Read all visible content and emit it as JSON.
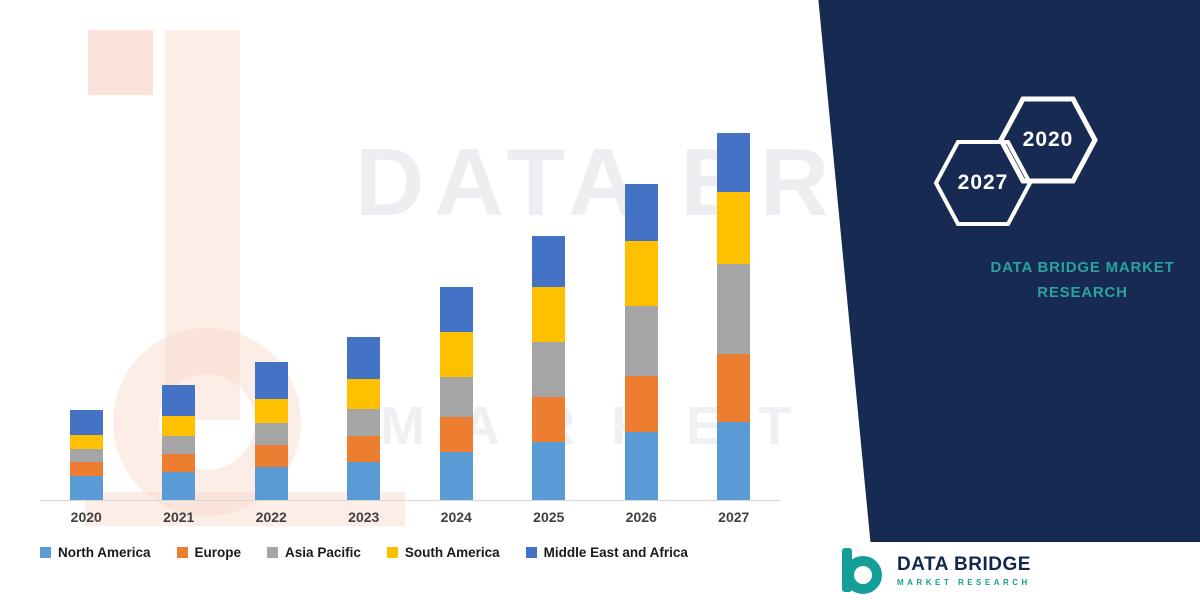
{
  "watermark": {
    "line1": "DATA BRIDGE",
    "line2": "MARKET RESEARCH"
  },
  "brand_panel": {
    "panel_color": "#172A52",
    "accent_color": "#2BA39B",
    "hexagons": [
      {
        "label": "2027"
      },
      {
        "label": "2020"
      }
    ],
    "title_line1": "DATA BRIDGE MARKET",
    "title_line2": "RESEARCH"
  },
  "footer_logo": {
    "name": "DATA BRIDGE",
    "tagline": "MARKET RESEARCH"
  },
  "chart_data": {
    "type": "bar",
    "stacked": true,
    "title": "",
    "xlabel": "",
    "ylabel": "",
    "axes_visible": false,
    "legend_position": "bottom",
    "ylim": [
      0,
      380
    ],
    "categories": [
      "2020",
      "2021",
      "2022",
      "2023",
      "2024",
      "2025",
      "2026",
      "2027"
    ],
    "series": [
      {
        "name": "North America",
        "color": "#5B9BD5",
        "values": [
          24,
          28,
          33,
          38,
          48,
          58,
          68,
          78
        ]
      },
      {
        "name": "Europe",
        "color": "#ED7D31",
        "values": [
          14,
          18,
          22,
          26,
          35,
          45,
          56,
          68
        ]
      },
      {
        "name": "Asia Pacific",
        "color": "#A5A5A5",
        "values": [
          13,
          18,
          22,
          27,
          40,
          55,
          70,
          90
        ]
      },
      {
        "name": "South America",
        "color": "#FFC000",
        "values": [
          14,
          20,
          24,
          30,
          45,
          55,
          65,
          72
        ]
      },
      {
        "name": "Middle East and Africa",
        "color": "#4472C4",
        "values": [
          25,
          31,
          37,
          42,
          45,
          51,
          57,
          59
        ]
      }
    ]
  }
}
